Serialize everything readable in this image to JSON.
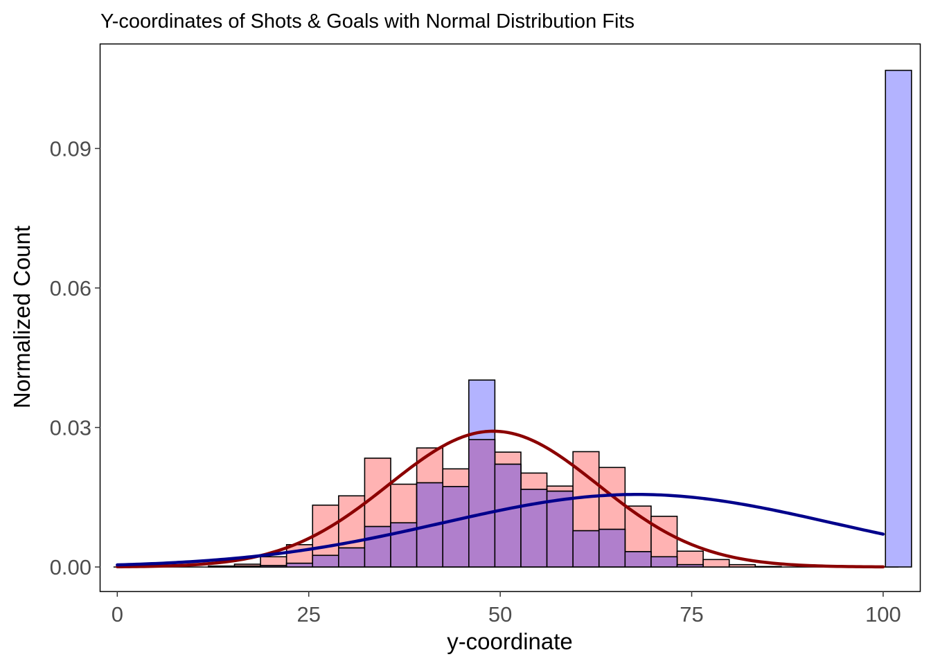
{
  "chart_data": {
    "type": "bar",
    "title": "Y-coordinates of Shots & Goals with Normal Distribution Fits",
    "xlabel": "y-coordinate",
    "ylabel": "Normalized Count",
    "xlim": [
      -2.2,
      104.8
    ],
    "ylim": [
      -0.0052,
      0.1124
    ],
    "x_ticks": [
      0,
      25,
      50,
      75,
      100
    ],
    "x_tick_labels": [
      "0",
      "25",
      "50",
      "75",
      "100"
    ],
    "y_ticks": [
      0.0,
      0.03,
      0.06,
      0.09
    ],
    "y_tick_labels": [
      "0.00",
      "0.03",
      "0.06",
      "0.09"
    ],
    "grid": false,
    "bin_width": 3.4,
    "bin_centers": [
      0.0,
      3.4,
      6.8,
      10.2,
      13.6,
      17.0,
      20.4,
      23.8,
      27.2,
      30.6,
      34.0,
      37.4,
      40.8,
      44.2,
      47.6,
      51.0,
      54.4,
      57.8,
      61.2,
      64.6,
      68.0,
      71.4,
      74.8,
      78.2,
      81.6,
      85.0,
      88.4,
      91.8,
      95.2,
      98.6,
      102.0
    ],
    "series": [
      {
        "kind": "histogram",
        "fill": "#ffb3b3",
        "values": [
          0,
          0,
          0,
          0,
          0.0002,
          0.0006,
          0.0022,
          0.0048,
          0.0133,
          0.0153,
          0.0234,
          0.0178,
          0.0256,
          0.0211,
          0.0274,
          0.0247,
          0.0202,
          0.0174,
          0.0248,
          0.0214,
          0.0131,
          0.0109,
          0.0034,
          0.0016,
          0.0005,
          0.0001,
          0,
          0,
          0,
          0,
          0
        ]
      },
      {
        "kind": "histogram",
        "fill": "#b3b3ff",
        "values": [
          0,
          0,
          0,
          0,
          0.0001,
          0.0002,
          0.0003,
          0.0008,
          0.0025,
          0.0041,
          0.0087,
          0.0095,
          0.0181,
          0.0173,
          0.0402,
          0.0221,
          0.0167,
          0.0163,
          0.0078,
          0.0081,
          0.0033,
          0.0022,
          0.0005,
          0,
          0,
          0,
          0,
          0,
          0,
          0,
          0.1068
        ]
      },
      {
        "kind": "normal-fit",
        "color": "#8b0000",
        "mean": 49.1,
        "sd": 13.65,
        "x": [
          0,
          100
        ],
        "peak": 0.0292
      },
      {
        "kind": "normal-fit",
        "color": "#00008b",
        "mean": 67.9,
        "sd": 25.5,
        "x": [
          0,
          100
        ],
        "peak": 0.0156
      }
    ],
    "overlap_fill": "#b07fcc",
    "bar_stroke": "#000000"
  }
}
